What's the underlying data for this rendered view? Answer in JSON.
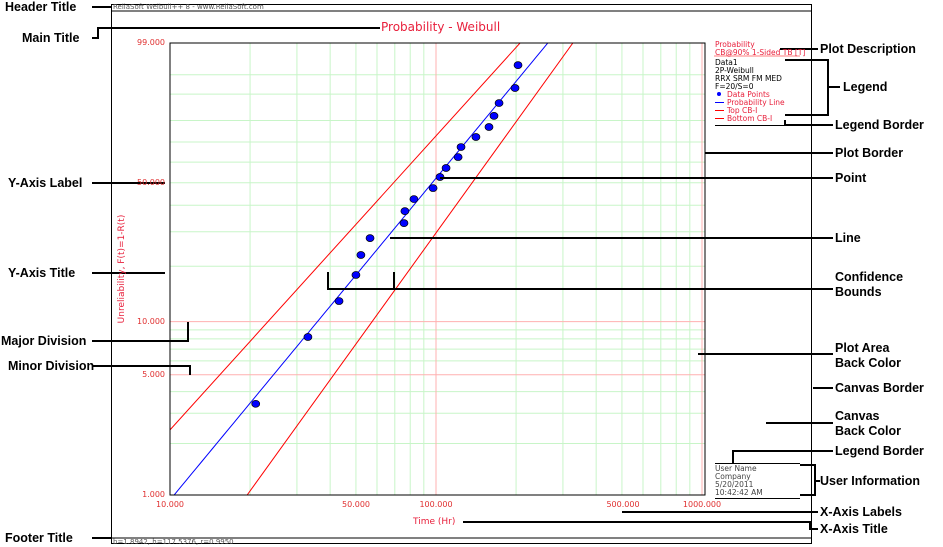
{
  "header_title": "ReliaSoft Weibull++ 8 - www.ReliaSoft.com",
  "footer_title": "b=1.8942, h=117.5376, r=0.9950",
  "main_title": "Probability - Weibull",
  "x_axis_title": "Time (Hr)",
  "y_axis_title": "Unreliability, F(t)=1-R(t)",
  "x_axis_labels": [
    "10.000",
    "50.000",
    "100.000",
    "500.000",
    "1000.000"
  ],
  "y_axis_labels": [
    "99.000",
    "50.000",
    "10.000",
    "5.000",
    "1.000"
  ],
  "plot_description": [
    "Probability",
    "CB@90% 1-Sided TB [T]"
  ],
  "legend": {
    "info": [
      "Data1",
      "2P-Weibull",
      "RRX SRM FM MED",
      "F=20/S=0"
    ],
    "items": [
      {
        "label": "Data Points",
        "color": "#0000ff",
        "type": "point"
      },
      {
        "label": "Probability Line",
        "color": "#0000ff",
        "type": "line"
      },
      {
        "label": "Top CB-I",
        "color": "#ff0000",
        "type": "line"
      },
      {
        "label": "Bottom CB-I",
        "color": "#ff0000",
        "type": "line"
      }
    ]
  },
  "user_info": [
    "User Name",
    "Company",
    "5/20/2011",
    "10:42:42 AM"
  ],
  "annotations": {
    "header_title": "Header Title",
    "main_title": "Main Title",
    "y_axis_label": "Y-Axis Label",
    "y_axis_title": "Y-Axis Title",
    "major_division": "Major Division",
    "minor_division": "Minor Division",
    "footer_title": "Footer Title",
    "plot_description": "Plot Description",
    "legend": "Legend",
    "legend_border": "Legend Border",
    "plot_border": "Plot Border",
    "point": "Point",
    "line": "Line",
    "confidence_bounds": [
      "Confidence",
      "Bounds"
    ],
    "plot_area_back_color": [
      "Plot Area",
      "Back Color"
    ],
    "canvas_border": "Canvas Border",
    "canvas_back_color": [
      "Canvas",
      "Back Color"
    ],
    "legend_border_2": "Legend Border",
    "user_information": "User Information",
    "x_axis_labels": "X-Axis Labels",
    "x_axis_title": "X-Axis Title"
  },
  "colors": {
    "title": "#e8203c",
    "points": "#0000ff",
    "prob_line": "#0000ff",
    "bounds": "#ff0000",
    "major_grid": "#ffb0b0",
    "minor_grid": "#c8f5c8"
  },
  "chart_data": {
    "type": "scatter",
    "x_scale": "log",
    "y_scale": "weibull",
    "xlim": [
      10,
      1000
    ],
    "ylim_percent": [
      1,
      99
    ],
    "beta": 1.8942,
    "eta": 117.5376,
    "rho": 0.995,
    "points": [
      [
        21.0,
        3.4
      ],
      [
        33.0,
        8.2
      ],
      [
        43.2,
        13.0
      ],
      [
        50.0,
        18.0
      ],
      [
        52.2,
        22.9
      ],
      [
        56.5,
        27.9
      ],
      [
        75.8,
        33.0
      ],
      [
        76.4,
        37.6
      ],
      [
        82.6,
        42.6
      ],
      [
        97.5,
        47.5
      ],
      [
        103.5,
        52.7
      ],
      [
        109.1,
        57.1
      ],
      [
        121.1,
        62.5
      ],
      [
        124.2,
        67.5
      ],
      [
        141.3,
        72.4
      ],
      [
        158.2,
        77.1
      ],
      [
        165.2,
        82.0
      ],
      [
        172.6,
        87.0
      ],
      [
        198.2,
        91.8
      ],
      [
        203.4,
        96.7
      ]
    ],
    "top_cb": [
      [
        10,
        2.4
      ],
      [
        207,
        99
      ]
    ],
    "bottom_cb": [
      [
        19.5,
        1
      ],
      [
        327,
        99
      ]
    ],
    "major_x": [
      10,
      100,
      1000
    ],
    "minor_x": [
      20,
      30,
      40,
      50,
      60,
      70,
      80,
      90,
      200,
      300,
      400,
      500,
      600,
      700,
      800,
      900
    ],
    "major_y": [
      5,
      10
    ],
    "minor_y": [
      2,
      3,
      4,
      6,
      7,
      8,
      9,
      20,
      30,
      40,
      50,
      60,
      70,
      80,
      90,
      95
    ]
  }
}
